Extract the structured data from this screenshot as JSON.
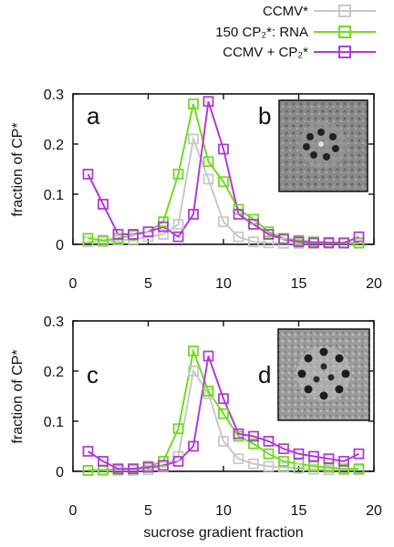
{
  "colors": {
    "ccmv": "#c8c8c8",
    "cp2_rna": "#6fdc1e",
    "ccmv_cp2": "#b23ad8"
  },
  "legend": [
    {
      "key": "ccmv",
      "label": "CCMV*"
    },
    {
      "key": "cp2_rna",
      "label": "150 CP₂*: RNA"
    },
    {
      "key": "ccmv_cp2",
      "label": "CCMV + CP₂*"
    }
  ],
  "chart_data": [
    {
      "type": "line",
      "panel": "a",
      "inset_label": "b",
      "xlabel": "",
      "ylabel": "fraction of CP*",
      "xlim": [
        0,
        20
      ],
      "ylim": [
        0,
        0.3
      ],
      "xticks": [
        0,
        5,
        10,
        15,
        20
      ],
      "yticks": [
        0,
        0.1,
        0.2,
        0.3
      ],
      "ytick_labels": [
        "0",
        "0.1",
        "0.2",
        "0.3"
      ],
      "series": [
        {
          "key": "ccmv",
          "name": "CCMV*",
          "x": [
            1,
            2,
            3,
            4,
            5,
            6,
            7,
            8,
            9,
            10,
            11,
            12,
            13,
            14,
            15,
            16,
            17,
            18,
            19
          ],
          "y": [
            0.005,
            0.005,
            0.008,
            0.01,
            0.015,
            0.02,
            0.04,
            0.21,
            0.13,
            0.045,
            0.015,
            0.005,
            0.003,
            0.002,
            0.002,
            0.002,
            0.002,
            0.002,
            0.002
          ]
        },
        {
          "key": "cp2_rna",
          "name": "150 CP₂*: RNA",
          "x": [
            1,
            2,
            3,
            4,
            5,
            6,
            7,
            8,
            9,
            10,
            11,
            12,
            13,
            14,
            15,
            16,
            17,
            18,
            19
          ],
          "y": [
            0.012,
            0.008,
            0.012,
            0.018,
            0.025,
            0.045,
            0.14,
            0.28,
            0.165,
            0.125,
            0.07,
            0.05,
            0.025,
            0.012,
            0.008,
            0.005,
            0.004,
            0.003,
            0.003
          ]
        },
        {
          "key": "ccmv_cp2",
          "name": "CCMV + CP₂*",
          "x": [
            1,
            2,
            3,
            4,
            5,
            6,
            7,
            8,
            9,
            10,
            11,
            12,
            13,
            14,
            15,
            16,
            17,
            18,
            19
          ],
          "y": [
            0.14,
            0.08,
            0.02,
            0.02,
            0.025,
            0.035,
            0.015,
            0.06,
            0.285,
            0.19,
            0.06,
            0.04,
            0.02,
            0.01,
            0.005,
            0.003,
            0.003,
            0.003,
            0.015
          ]
        }
      ]
    },
    {
      "type": "line",
      "panel": "c",
      "inset_label": "d",
      "xlabel": "sucrose gradient fraction",
      "ylabel": "fraction of CP*",
      "xlim": [
        0,
        20
      ],
      "ylim": [
        0,
        0.3
      ],
      "xticks": [
        0,
        5,
        10,
        15,
        20
      ],
      "yticks": [
        0,
        0.1,
        0.2,
        0.3
      ],
      "ytick_labels": [
        "0",
        "0.1",
        "0.2",
        "0.3"
      ],
      "series": [
        {
          "key": "ccmv",
          "name": "CCMV*",
          "x": [
            1,
            2,
            3,
            4,
            5,
            6,
            7,
            8,
            9,
            10,
            11,
            12,
            13,
            14,
            15,
            16,
            17,
            18,
            19
          ],
          "y": [
            0.002,
            0.002,
            0.002,
            0.002,
            0.003,
            0.01,
            0.03,
            0.2,
            0.155,
            0.06,
            0.025,
            0.015,
            0.01,
            0.008,
            0.006,
            0.004,
            0.003,
            0.003,
            0.003
          ]
        },
        {
          "key": "cp2_rna",
          "name": "150 CP₂*: RNA",
          "x": [
            1,
            2,
            3,
            4,
            5,
            6,
            7,
            8,
            9,
            10,
            11,
            12,
            13,
            14,
            15,
            16,
            17,
            18,
            19
          ],
          "y": [
            0.002,
            0.003,
            0.004,
            0.005,
            0.01,
            0.02,
            0.085,
            0.24,
            0.16,
            0.115,
            0.07,
            0.055,
            0.035,
            0.02,
            0.015,
            0.01,
            0.008,
            0.005,
            0.005
          ]
        },
        {
          "key": "ccmv_cp2",
          "name": "CCMV + CP₂*",
          "x": [
            1,
            2,
            3,
            4,
            5,
            6,
            7,
            8,
            9,
            10,
            11,
            12,
            13,
            14,
            15,
            16,
            17,
            18,
            19
          ],
          "y": [
            0.04,
            0.02,
            0.005,
            0.005,
            0.008,
            0.012,
            0.02,
            0.05,
            0.23,
            0.145,
            0.075,
            0.07,
            0.06,
            0.045,
            0.035,
            0.03,
            0.025,
            0.02,
            0.035
          ]
        }
      ]
    }
  ]
}
